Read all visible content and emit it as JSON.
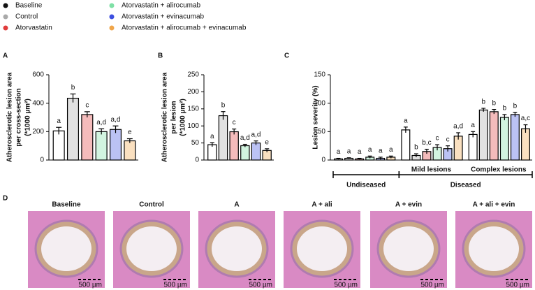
{
  "legend": [
    {
      "name": "Baseline",
      "color": "#111111"
    },
    {
      "name": "Control",
      "color": "#a9a9a9"
    },
    {
      "name": "Atorvastatin",
      "color": "#e03c3c"
    },
    {
      "name": "Atorvastatin + alirocumab",
      "color": "#7fe0a6"
    },
    {
      "name": "Atorvastatin + evinacumab",
      "color": "#3d4fe0"
    },
    {
      "name": "Atorvastatin + alirocumab + evinacumab",
      "color": "#f0a64a"
    }
  ],
  "chart_data": [
    {
      "type": "bar",
      "panel": "A",
      "ylabel": [
        "Atherosclerotic lesion area",
        "per cross-section",
        "(*1000 µm²)"
      ],
      "values": [
        205,
        435,
        320,
        200,
        215,
        135
      ],
      "errors": [
        25,
        30,
        20,
        20,
        25,
        15
      ],
      "annotations": [
        "a",
        "b",
        "c",
        "a,d",
        "a,d",
        "e"
      ],
      "ylim": [
        0,
        600
      ],
      "yticks": [
        0,
        200,
        400,
        600
      ]
    },
    {
      "type": "bar",
      "panel": "B",
      "ylabel": [
        "Atherosclerotic lesion area",
        "per lesion",
        "(*1000 µm²)"
      ],
      "values": [
        45,
        130,
        83,
        42,
        50,
        28
      ],
      "errors": [
        6,
        12,
        8,
        4,
        6,
        5
      ],
      "annotations": [
        "a",
        "b",
        "c",
        "a,d",
        "a,d",
        "e"
      ],
      "ylim": [
        0,
        250
      ],
      "yticks": [
        0,
        50,
        100,
        150,
        200,
        250
      ]
    },
    {
      "type": "bar",
      "panel": "C",
      "ylabel": [
        "Lesion severity (%)"
      ],
      "categories": [
        null,
        "Mild lesions",
        "Complex lesions"
      ],
      "values": [
        [
          2,
          3,
          2,
          5,
          3,
          5
        ],
        [
          53,
          8,
          15,
          22,
          20,
          42
        ],
        [
          45,
          88,
          85,
          75,
          80,
          55
        ]
      ],
      "errors": [
        [
          1,
          1,
          1,
          2,
          2,
          2
        ],
        [
          5,
          3,
          4,
          5,
          5,
          6
        ],
        [
          5,
          3,
          4,
          5,
          4,
          7
        ]
      ],
      "annotations": [
        [
          "a",
          "a",
          "a",
          "a",
          "a",
          "a"
        ],
        [
          "a",
          "b",
          "b,c",
          "c",
          "c",
          "a,d"
        ],
        [
          "a",
          "b",
          "b",
          "b",
          "b",
          "a,c"
        ]
      ],
      "brackets": [
        "Undiseased",
        "Diseased"
      ],
      "ylim": [
        0,
        150
      ],
      "yticks": [
        0,
        50,
        100,
        150
      ]
    }
  ],
  "panel_d": {
    "panel": "D",
    "images": [
      {
        "label": "Baseline",
        "scale": "500 µm"
      },
      {
        "label": "Control",
        "scale": "500 µm"
      },
      {
        "label": "A",
        "scale": "500 µm"
      },
      {
        "label": "A + ali",
        "scale": "500 µm"
      },
      {
        "label": "A + evin",
        "scale": "500 µm"
      },
      {
        "label": "A + ali + evin",
        "scale": "500 µm"
      }
    ]
  }
}
